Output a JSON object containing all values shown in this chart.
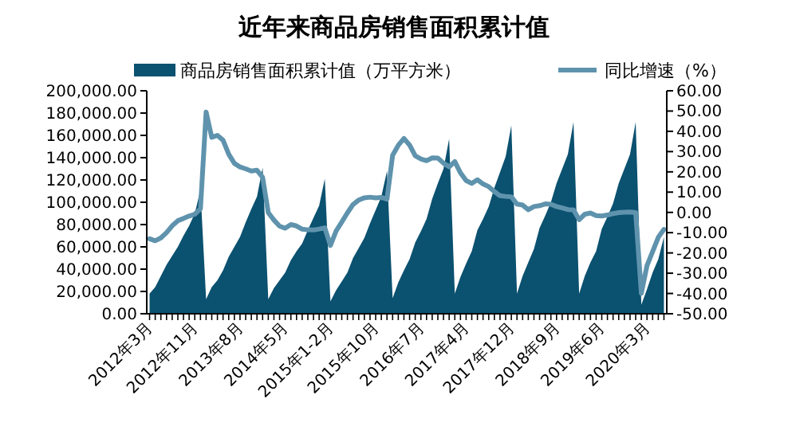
{
  "chart_data": {
    "type": "area",
    "title": "近年来商品房销售面积累计值",
    "legend": "top",
    "categories": [
      "2012年3月",
      null,
      null,
      null,
      null,
      null,
      null,
      null,
      "2012年11月",
      null,
      null,
      null,
      null,
      null,
      null,
      null,
      "2013年8月",
      null,
      null,
      null,
      null,
      null,
      null,
      null,
      "2014年5月",
      null,
      null,
      null,
      null,
      null,
      null,
      null,
      "2015年1-2月",
      null,
      null,
      null,
      null,
      null,
      null,
      null,
      "2015年10月",
      null,
      null,
      null,
      null,
      null,
      null,
      null,
      "2016年7月",
      null,
      null,
      null,
      null,
      null,
      null,
      null,
      "2017年4月",
      null,
      null,
      null,
      null,
      null,
      null,
      null,
      "2017年12月",
      null,
      null,
      null,
      null,
      null,
      null,
      null,
      "2018年9月",
      null,
      null,
      null,
      null,
      null,
      null,
      null,
      "2019年6月",
      null,
      null,
      null,
      null,
      null,
      null,
      null,
      "2020年3月",
      null,
      null,
      null
    ],
    "ylim": [
      0,
      200000
    ],
    "yticks": [
      {
        "value": 0,
        "label": "0.00"
      },
      {
        "value": 20000,
        "label": "20,000.00"
      },
      {
        "value": 40000,
        "label": "40,000.00"
      },
      {
        "value": 60000,
        "label": "60,000.00"
      },
      {
        "value": 80000,
        "label": "80,000.00"
      },
      {
        "value": 100000,
        "label": "100,000.00"
      },
      {
        "value": 120000,
        "label": "120,000.00"
      },
      {
        "value": 140000,
        "label": "140,000.00"
      },
      {
        "value": 160000,
        "label": "160,000.00"
      },
      {
        "value": 180000,
        "label": "180,000.00"
      },
      {
        "value": 200000,
        "label": "200,000.00"
      }
    ],
    "y2lim": [
      -50,
      60
    ],
    "y2ticks": [
      {
        "value": -50,
        "label": "-50.00"
      },
      {
        "value": -40,
        "label": "-40.00"
      },
      {
        "value": -30,
        "label": "-30.00"
      },
      {
        "value": -20,
        "label": "-20.00"
      },
      {
        "value": -10,
        "label": "-10.00"
      },
      {
        "value": 0,
        "label": "0.00"
      },
      {
        "value": 10,
        "label": "10.00"
      },
      {
        "value": 20,
        "label": "20.00"
      },
      {
        "value": 30,
        "label": "30.00"
      },
      {
        "value": 40,
        "label": "40.00"
      },
      {
        "value": 50,
        "label": "50.00"
      },
      {
        "value": 60,
        "label": "60.00"
      }
    ],
    "series": [
      {
        "name": "商品房销售面积累计值（万平方米）",
        "color": "#0b5170",
        "values": [
          18000,
          24000,
          34000,
          44000,
          52000,
          60000,
          70000,
          79000,
          90000,
          111000,
          13000,
          24000,
          30000,
          39000,
          51000,
          60000,
          69000,
          82000,
          94000,
          105000,
          131000,
          13000,
          23000,
          30000,
          37000,
          48000,
          56000,
          63000,
          75000,
          86000,
          97000,
          121000,
          11000,
          21000,
          29000,
          37000,
          50000,
          59000,
          68000,
          81000,
          93000,
          105000,
          128000,
          14000,
          28000,
          39000,
          49000,
          64000,
          74000,
          85000,
          103000,
          117000,
          130000,
          157000,
          18000,
          33000,
          45000,
          56000,
          75000,
          85000,
          96000,
          113000,
          127000,
          141000,
          169000,
          18000,
          34000,
          46000,
          58000,
          77000,
          88000,
          100000,
          117000,
          130000,
          143000,
          172000,
          18000,
          34000,
          46000,
          56000,
          76000,
          87000,
          99000,
          117000,
          130000,
          143000,
          172000,
          8000,
          22000,
          37000,
          49000,
          69000
        ]
      },
      {
        "name": "同比增速（%）",
        "type": "line",
        "axis": "y2",
        "color": "#5f93ad",
        "values": [
          -13.0,
          -14.0,
          -12.6,
          -10.0,
          -6.6,
          -4.1,
          -3.0,
          -1.8,
          -0.9,
          1.8,
          49.5,
          37.0,
          38.0,
          35.6,
          28.7,
          24.2,
          22.4,
          21.5,
          20.4,
          20.8,
          17.3,
          -0.1,
          -3.8,
          -6.8,
          -7.8,
          -6.0,
          -6.7,
          -8.3,
          -8.6,
          -8.7,
          -8.2,
          -7.6,
          -16.3,
          -9.2,
          -4.8,
          -0.2,
          3.9,
          6.1,
          7.2,
          7.5,
          7.2,
          7.4,
          6.5,
          28.2,
          33.1,
          36.5,
          33.2,
          27.9,
          26.4,
          25.5,
          26.9,
          26.8,
          24.3,
          22.5,
          25.1,
          19.5,
          15.7,
          14.3,
          16.1,
          14.0,
          12.7,
          10.3,
          8.2,
          7.9,
          7.7,
          4.1,
          3.6,
          1.3,
          2.9,
          3.3,
          4.2,
          4.0,
          2.9,
          2.2,
          1.4,
          1.3,
          -3.6,
          -0.9,
          -0.3,
          -1.6,
          -1.8,
          -1.3,
          -0.6,
          -0.1,
          0.1,
          0.2,
          -0.1,
          -39.9,
          -26.3,
          -19.3,
          -12.3,
          -8.4
        ]
      }
    ]
  }
}
